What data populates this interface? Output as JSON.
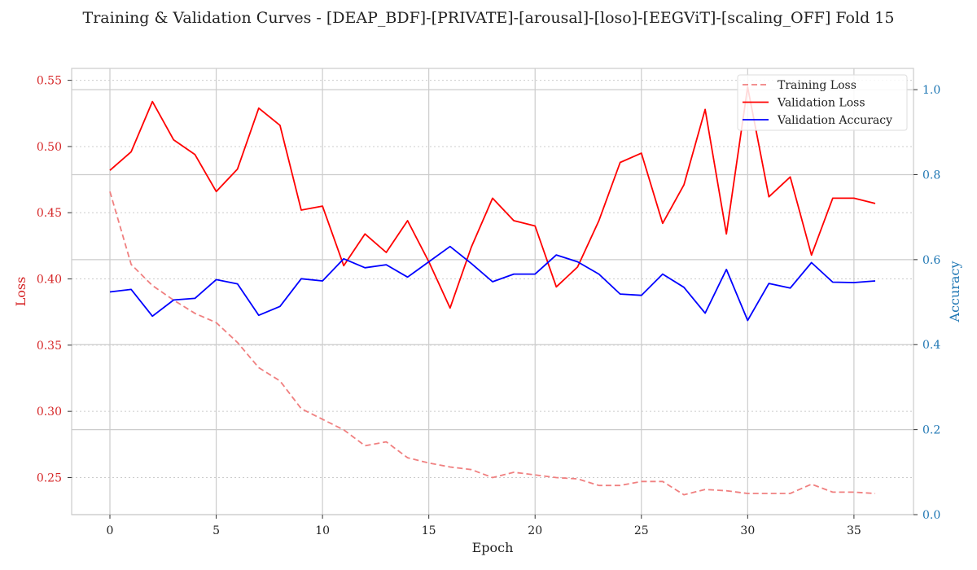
{
  "chart_data": {
    "type": "line",
    "title": "Training & Validation Curves - [DEAP_BDF]-[PRIVATE]-[arousal]-[loso]-[EEGViT]-[scaling_OFF] Fold 15",
    "xlabel": "Epoch",
    "ylabel_left": "Loss",
    "ylabel_right": "Accuracy",
    "xlim": [
      -1.8,
      37.8
    ],
    "ylim_left": [
      0.222,
      0.559
    ],
    "ylim_right": [
      0.0,
      1.05
    ],
    "x_ticks": [
      0,
      5,
      10,
      15,
      20,
      25,
      30,
      35
    ],
    "y_left_ticks": [
      0.25,
      0.3,
      0.35,
      0.4,
      0.45,
      0.5,
      0.55
    ],
    "y_left_tick_labels": [
      "0.25",
      "0.30",
      "0.35",
      "0.40",
      "0.45",
      "0.50",
      "0.55"
    ],
    "y_right_ticks": [
      0.0,
      0.2,
      0.4,
      0.6,
      0.8,
      1.0
    ],
    "y_right_tick_labels": [
      "0.0",
      "0.2",
      "0.4",
      "0.6",
      "0.8",
      "1.0"
    ],
    "grid": true,
    "legend_position": "top-right",
    "colors": {
      "left_axis": "#d62728",
      "right_axis": "#1f77b4",
      "grid": "#cccccc"
    },
    "x": [
      0,
      1,
      2,
      3,
      4,
      5,
      6,
      7,
      8,
      9,
      10,
      11,
      12,
      13,
      14,
      15,
      16,
      17,
      18,
      19,
      20,
      21,
      22,
      23,
      24,
      25,
      26,
      27,
      28,
      29,
      30,
      31,
      32,
      33,
      34,
      35,
      36
    ],
    "series": [
      {
        "name": "Training Loss",
        "axis": "left",
        "color": "#f08080",
        "dashed": true,
        "values": [
          0.466,
          0.411,
          0.395,
          0.384,
          0.374,
          0.367,
          0.352,
          0.333,
          0.323,
          0.302,
          0.294,
          0.286,
          0.274,
          0.277,
          0.265,
          0.261,
          0.258,
          0.256,
          0.25,
          0.254,
          0.252,
          0.25,
          0.249,
          0.244,
          0.244,
          0.247,
          0.247,
          0.237,
          0.241,
          0.24,
          0.238,
          0.238,
          0.238,
          0.245,
          0.239,
          0.239,
          0.238
        ]
      },
      {
        "name": "Validation Loss",
        "axis": "left",
        "color": "#ff0000",
        "dashed": false,
        "values": [
          0.482,
          0.496,
          0.534,
          0.505,
          0.494,
          0.466,
          0.483,
          0.529,
          0.516,
          0.452,
          0.455,
          0.41,
          0.434,
          0.42,
          0.444,
          0.413,
          0.378,
          0.424,
          0.461,
          0.444,
          0.44,
          0.394,
          0.409,
          0.444,
          0.488,
          0.495,
          0.442,
          0.471,
          0.528,
          0.434,
          0.545,
          0.462,
          0.477,
          0.418,
          0.461,
          0.461,
          0.457
        ]
      },
      {
        "name": "Validation Accuracy",
        "axis": "right",
        "color": "#0000ff",
        "dashed": false,
        "values": [
          0.524,
          0.53,
          0.467,
          0.505,
          0.509,
          0.553,
          0.543,
          0.469,
          0.49,
          0.555,
          0.55,
          0.602,
          0.581,
          0.588,
          0.559,
          0.595,
          0.631,
          0.591,
          0.548,
          0.566,
          0.566,
          0.611,
          0.595,
          0.566,
          0.519,
          0.516,
          0.566,
          0.535,
          0.474,
          0.577,
          0.457,
          0.544,
          0.533,
          0.593,
          0.547,
          0.546,
          0.55
        ]
      }
    ]
  }
}
